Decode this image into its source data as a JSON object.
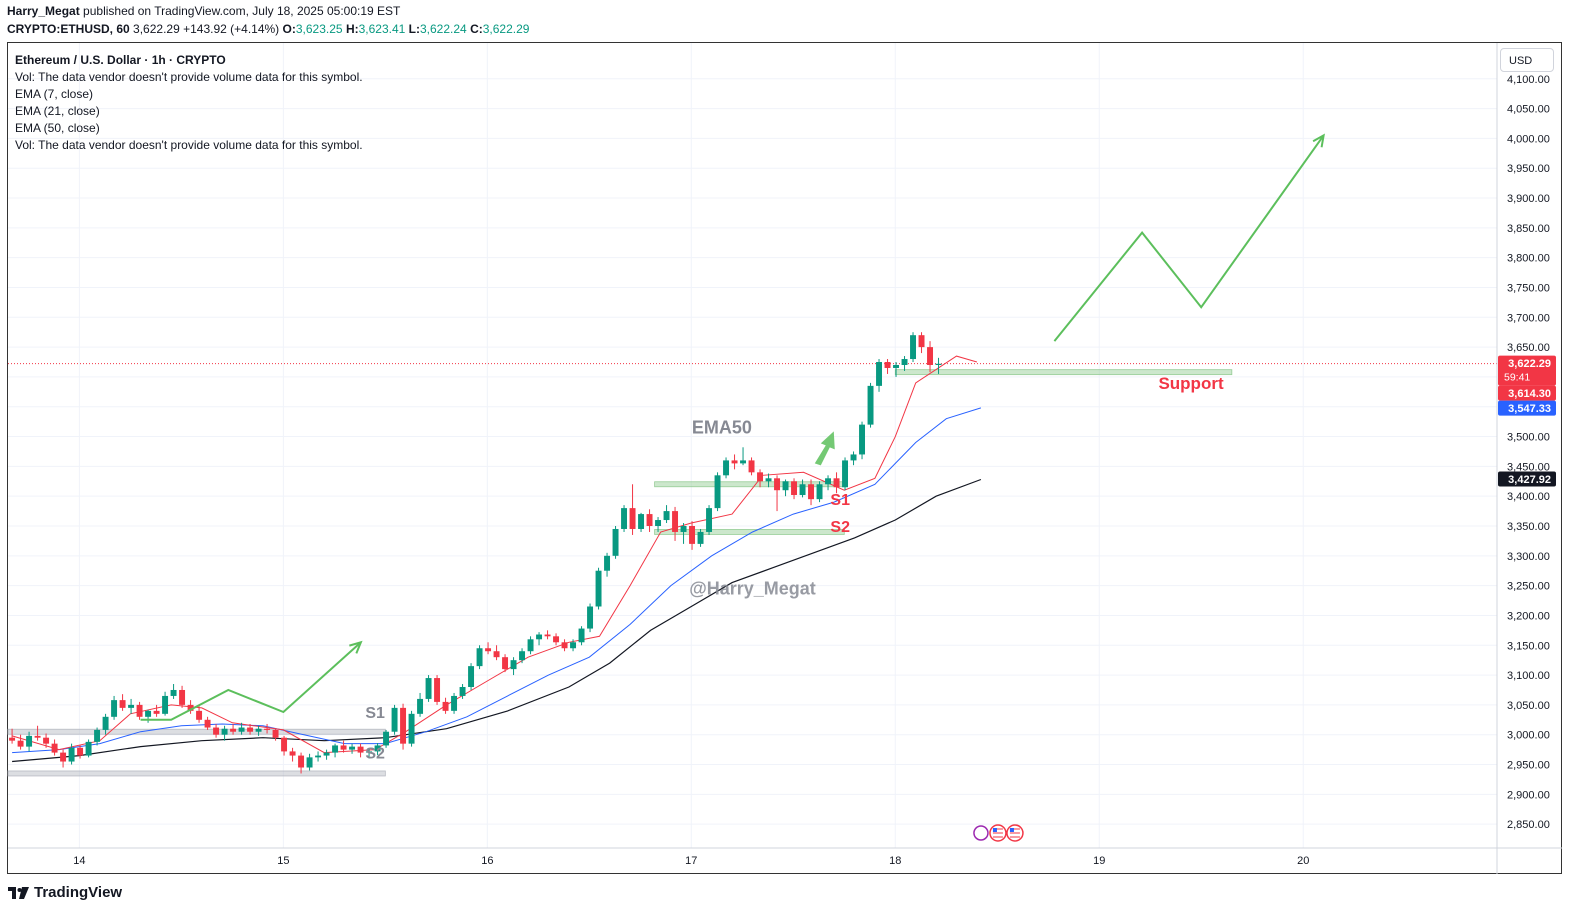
{
  "header": {
    "author": "Harry_Megat",
    "published_text": "published on TradingView.com, July 18, 2025 05:00:19 EST",
    "symbol_interval": "CRYPTO:ETHUSD, 60",
    "last": "3,622.29",
    "change": "+143.92 (+4.14%)",
    "o_label": "O:",
    "o_val": "3,623.25",
    "h_label": "H:",
    "h_val": "3,623.41",
    "l_label": "L:",
    "l_val": "3,622.24",
    "c_label": "C:",
    "c_val": "3,622.29"
  },
  "legend": {
    "title": "Ethereum / U.S. Dollar · 1h · CRYPTO",
    "vol1": "Vol: The data vendor doesn't provide volume data for this symbol.",
    "ema7": "EMA (7, close)",
    "ema21": "EMA (21, close)",
    "ema50": "EMA (50, close)",
    "vol2": "Vol: The data vendor doesn't provide volume data for this symbol."
  },
  "currency": "USD",
  "brand": "TradingView",
  "colors": {
    "up": "#089981",
    "down": "#f23645",
    "ema7": "#f23645",
    "ema21": "#2962ff",
    "ema50": "#131722",
    "arrow": "#5cbf5c",
    "zone": "#8fc98f",
    "annotation_gray": "#868993",
    "annotation_red": "#f23645"
  },
  "chart_data": {
    "type": "candlestick",
    "title": "Ethereum / U.S. Dollar · 1h · CRYPTO",
    "ylim": [
      2810,
      4160
    ],
    "y_ticks": [
      2850,
      2900,
      2950,
      3000,
      3050,
      3100,
      3150,
      3200,
      3250,
      3300,
      3350,
      3400,
      3450,
      3500,
      3550,
      3600,
      3650,
      3700,
      3750,
      3800,
      3850,
      3900,
      3950,
      4000,
      4050,
      4100
    ],
    "y_tick_labels": [
      "2,850.00",
      "2,900.00",
      "2,950.00",
      "3,000.00",
      "3,050.00",
      "3,100.00",
      "3,150.00",
      "3,200.00",
      "3,250.00",
      "3,300.00",
      "3,350.00",
      "3,400.00",
      "3,450.00",
      "3,500.00",
      "3,550.00",
      "3,600.00",
      "3,650.00",
      "3,700.00",
      "3,750.00",
      "3,800.00",
      "3,850.00",
      "3,900.00",
      "3,950.00",
      "4,000.00",
      "4,050.00",
      "4,100.00"
    ],
    "x_day_range": [
      13.65,
      20.95
    ],
    "x_ticks": [
      14,
      15,
      16,
      17,
      18,
      19,
      20
    ],
    "x_tick_labels": [
      "14",
      "15",
      "16",
      "17",
      "18",
      "19",
      "20"
    ],
    "candle_period_days": 0.04167,
    "candle_start_day": 13.67,
    "candles": [
      [
        2995,
        3010,
        2985,
        2990
      ],
      [
        2990,
        3000,
        2975,
        2980
      ],
      [
        2980,
        3005,
        2972,
        2998
      ],
      [
        2998,
        3015,
        2990,
        2995
      ],
      [
        2995,
        3002,
        2978,
        2985
      ],
      [
        2985,
        2992,
        2965,
        2970
      ],
      [
        2970,
        2975,
        2945,
        2955
      ],
      [
        2955,
        2985,
        2950,
        2978
      ],
      [
        2978,
        2982,
        2960,
        2965
      ],
      [
        2965,
        2992,
        2962,
        2988
      ],
      [
        2988,
        3012,
        2982,
        3008
      ],
      [
        3008,
        3035,
        3000,
        3030
      ],
      [
        3030,
        3065,
        3025,
        3058
      ],
      [
        3058,
        3068,
        3040,
        3045
      ],
      [
        3045,
        3060,
        3035,
        3050
      ],
      [
        3050,
        3055,
        3025,
        3030
      ],
      [
        3030,
        3042,
        3020,
        3040
      ],
      [
        3040,
        3050,
        3030,
        3035
      ],
      [
        3035,
        3072,
        3032,
        3065
      ],
      [
        3065,
        3085,
        3060,
        3075
      ],
      [
        3075,
        3082,
        3045,
        3050
      ],
      [
        3050,
        3058,
        3035,
        3040
      ],
      [
        3040,
        3048,
        3020,
        3025
      ],
      [
        3025,
        3030,
        3008,
        3012
      ],
      [
        3012,
        3018,
        2995,
        3000
      ],
      [
        3000,
        3015,
        2990,
        3010
      ],
      [
        3010,
        3018,
        3000,
        3005
      ],
      [
        3005,
        3020,
        3000,
        3012
      ],
      [
        3012,
        3018,
        3000,
        3005
      ],
      [
        3005,
        3015,
        2998,
        3010
      ],
      [
        3010,
        3018,
        3002,
        3008
      ],
      [
        3008,
        3010,
        2990,
        2995
      ],
      [
        2995,
        2998,
        2965,
        2972
      ],
      [
        2972,
        2978,
        2955,
        2965
      ],
      [
        2965,
        2970,
        2935,
        2945
      ],
      [
        2945,
        2968,
        2940,
        2962
      ],
      [
        2962,
        2972,
        2955,
        2965
      ],
      [
        2965,
        2975,
        2958,
        2970
      ],
      [
        2970,
        2985,
        2962,
        2982
      ],
      [
        2982,
        2990,
        2970,
        2975
      ],
      [
        2975,
        2985,
        2968,
        2980
      ],
      [
        2980,
        2985,
        2962,
        2970
      ],
      [
        2970,
        2978,
        2960,
        2972
      ],
      [
        2972,
        2986,
        2966,
        2982
      ],
      [
        2982,
        3008,
        2978,
        3005
      ],
      [
        3005,
        3050,
        3000,
        3045
      ],
      [
        3045,
        3052,
        2975,
        2985
      ],
      [
        2985,
        3040,
        2980,
        3035
      ],
      [
        3035,
        3070,
        3030,
        3060
      ],
      [
        3060,
        3100,
        3055,
        3095
      ],
      [
        3095,
        3100,
        3050,
        3055
      ],
      [
        3055,
        3062,
        3035,
        3040
      ],
      [
        3040,
        3070,
        3035,
        3065
      ],
      [
        3065,
        3085,
        3060,
        3080
      ],
      [
        3080,
        3120,
        3075,
        3115
      ],
      [
        3115,
        3150,
        3110,
        3145
      ],
      [
        3145,
        3155,
        3135,
        3140
      ],
      [
        3140,
        3150,
        3125,
        3130
      ],
      [
        3130,
        3135,
        3105,
        3110
      ],
      [
        3110,
        3130,
        3100,
        3125
      ],
      [
        3125,
        3145,
        3120,
        3140
      ],
      [
        3140,
        3165,
        3135,
        3160
      ],
      [
        3160,
        3172,
        3150,
        3168
      ],
      [
        3168,
        3175,
        3160,
        3165
      ],
      [
        3165,
        3170,
        3150,
        3155
      ],
      [
        3155,
        3160,
        3140,
        3145
      ],
      [
        3145,
        3160,
        3140,
        3155
      ],
      [
        3155,
        3182,
        3150,
        3178
      ],
      [
        3178,
        3220,
        3172,
        3215
      ],
      [
        3215,
        3280,
        3210,
        3275
      ],
      [
        3275,
        3305,
        3265,
        3300
      ],
      [
        3300,
        3350,
        3295,
        3345
      ],
      [
        3345,
        3385,
        3340,
        3380
      ],
      [
        3380,
        3420,
        3335,
        3345
      ],
      [
        3345,
        3372,
        3340,
        3370
      ],
      [
        3370,
        3378,
        3340,
        3350
      ],
      [
        3350,
        3365,
        3340,
        3360
      ],
      [
        3360,
        3385,
        3355,
        3375
      ],
      [
        3375,
        3382,
        3325,
        3340
      ],
      [
        3340,
        3355,
        3320,
        3350
      ],
      [
        3350,
        3358,
        3310,
        3320
      ],
      [
        3320,
        3345,
        3315,
        3340
      ],
      [
        3340,
        3385,
        3335,
        3380
      ],
      [
        3380,
        3440,
        3375,
        3435
      ],
      [
        3435,
        3465,
        3430,
        3460
      ],
      [
        3460,
        3470,
        3445,
        3455
      ],
      [
        3455,
        3482,
        3452,
        3460
      ],
      [
        3460,
        3465,
        3435,
        3440
      ],
      [
        3440,
        3445,
        3415,
        3425
      ],
      [
        3425,
        3438,
        3415,
        3430
      ],
      [
        3430,
        3435,
        3375,
        3410
      ],
      [
        3410,
        3428,
        3400,
        3425
      ],
      [
        3425,
        3430,
        3395,
        3402
      ],
      [
        3402,
        3428,
        3398,
        3420
      ],
      [
        3420,
        3428,
        3385,
        3395
      ],
      [
        3395,
        3425,
        3390,
        3420
      ],
      [
        3420,
        3435,
        3410,
        3430
      ],
      [
        3430,
        3440,
        3405,
        3415
      ],
      [
        3415,
        3465,
        3410,
        3460
      ],
      [
        3460,
        3475,
        3452,
        3470
      ],
      [
        3470,
        3525,
        3462,
        3520
      ],
      [
        3520,
        3590,
        3515,
        3585
      ],
      [
        3585,
        3630,
        3575,
        3625
      ],
      [
        3625,
        3630,
        3605,
        3615
      ],
      [
        3615,
        3625,
        3600,
        3620
      ],
      [
        3620,
        3635,
        3610,
        3630
      ],
      [
        3630,
        3675,
        3625,
        3670
      ],
      [
        3670,
        3675,
        3640,
        3650
      ],
      [
        3650,
        3660,
        3608,
        3620
      ],
      [
        3620,
        3632,
        3605,
        3622
      ]
    ],
    "ema7": [
      [
        13.67,
        2998
      ],
      [
        13.9,
        2975
      ],
      [
        14.1,
        2990
      ],
      [
        14.25,
        3035
      ],
      [
        14.45,
        3050
      ],
      [
        14.6,
        3045
      ],
      [
        14.75,
        3020
      ],
      [
        15.0,
        3008
      ],
      [
        15.2,
        2970
      ],
      [
        15.45,
        2975
      ],
      [
        15.6,
        3005
      ],
      [
        15.8,
        3050
      ],
      [
        16.0,
        3090
      ],
      [
        16.2,
        3130
      ],
      [
        16.4,
        3155
      ],
      [
        16.55,
        3165
      ],
      [
        16.7,
        3250
      ],
      [
        16.85,
        3340
      ],
      [
        17.0,
        3355
      ],
      [
        17.2,
        3370
      ],
      [
        17.35,
        3435
      ],
      [
        17.55,
        3440
      ],
      [
        17.75,
        3410
      ],
      [
        17.9,
        3430
      ],
      [
        18.0,
        3500
      ],
      [
        18.1,
        3590
      ],
      [
        18.3,
        3635
      ],
      [
        18.4,
        3625
      ]
    ],
    "ema21": [
      [
        13.67,
        2970
      ],
      [
        13.9,
        2975
      ],
      [
        14.1,
        2985
      ],
      [
        14.3,
        3005
      ],
      [
        14.5,
        3015
      ],
      [
        14.7,
        3018
      ],
      [
        14.9,
        3015
      ],
      [
        15.1,
        3000
      ],
      [
        15.3,
        2985
      ],
      [
        15.5,
        2985
      ],
      [
        15.7,
        3005
      ],
      [
        15.9,
        3030
      ],
      [
        16.1,
        3065
      ],
      [
        16.3,
        3100
      ],
      [
        16.5,
        3130
      ],
      [
        16.7,
        3185
      ],
      [
        16.9,
        3250
      ],
      [
        17.1,
        3300
      ],
      [
        17.3,
        3340
      ],
      [
        17.5,
        3370
      ],
      [
        17.7,
        3390
      ],
      [
        17.9,
        3420
      ],
      [
        18.1,
        3490
      ],
      [
        18.25,
        3530
      ],
      [
        18.42,
        3548
      ]
    ],
    "ema50": [
      [
        13.67,
        2955
      ],
      [
        14.0,
        2965
      ],
      [
        14.3,
        2980
      ],
      [
        14.6,
        2990
      ],
      [
        14.9,
        2995
      ],
      [
        15.2,
        2990
      ],
      [
        15.5,
        2995
      ],
      [
        15.8,
        3010
      ],
      [
        16.1,
        3040
      ],
      [
        16.4,
        3080
      ],
      [
        16.6,
        3120
      ],
      [
        16.8,
        3175
      ],
      [
        17.0,
        3215
      ],
      [
        17.2,
        3255
      ],
      [
        17.4,
        3280
      ],
      [
        17.6,
        3305
      ],
      [
        17.8,
        3330
      ],
      [
        18.0,
        3360
      ],
      [
        18.2,
        3400
      ],
      [
        18.42,
        3428
      ]
    ],
    "price_labels": [
      {
        "value": 3622.29,
        "text": "3,622.29",
        "sub": "59:41",
        "color": "#f23645"
      },
      {
        "value": 3614.3,
        "text": "3,614.30",
        "color": "#f23645"
      },
      {
        "value": 3547.33,
        "text": "3,547.33",
        "color": "#2962ff"
      },
      {
        "value": 3427.92,
        "text": "3,427.92",
        "color": "#131722"
      }
    ],
    "current_price": 3622.29,
    "zones": [
      {
        "x1": 13.65,
        "x2": 15.5,
        "y": 3005,
        "color": "gray"
      },
      {
        "x1": 13.65,
        "x2": 15.5,
        "y": 2935,
        "color": "gray"
      },
      {
        "x1": 16.82,
        "x2": 17.75,
        "y": 3420,
        "color": "green"
      },
      {
        "x1": 16.82,
        "x2": 17.75,
        "y": 3340,
        "color": "green"
      },
      {
        "x1": 18.0,
        "x2": 19.65,
        "y": 3608,
        "color": "green"
      }
    ],
    "annotations": [
      {
        "text": "S1",
        "day": 15.45,
        "price": 3028,
        "color": "gray"
      },
      {
        "text": "S2",
        "day": 15.45,
        "price": 2960,
        "color": "gray"
      },
      {
        "text": "EMA50",
        "day": 17.15,
        "price": 3505,
        "color": "gray"
      },
      {
        "text": "S1",
        "day": 17.73,
        "price": 3385,
        "color": "red"
      },
      {
        "text": "S2",
        "day": 17.73,
        "price": 3340,
        "color": "red"
      },
      {
        "text": "@Harry_Megat",
        "day": 17.3,
        "price": 3235,
        "color": "gray"
      },
      {
        "text": "Support",
        "day": 19.45,
        "price": 3580,
        "color": "red"
      }
    ],
    "projection_path_1": [
      [
        14.3,
        3025
      ],
      [
        14.45,
        3025
      ],
      [
        14.73,
        3075
      ],
      [
        15.0,
        3038
      ],
      [
        15.38,
        3155
      ]
    ],
    "projection_path_2": [
      [
        18.78,
        3660
      ],
      [
        19.21,
        3842
      ],
      [
        19.5,
        3717
      ],
      [
        20.1,
        4005
      ]
    ]
  }
}
